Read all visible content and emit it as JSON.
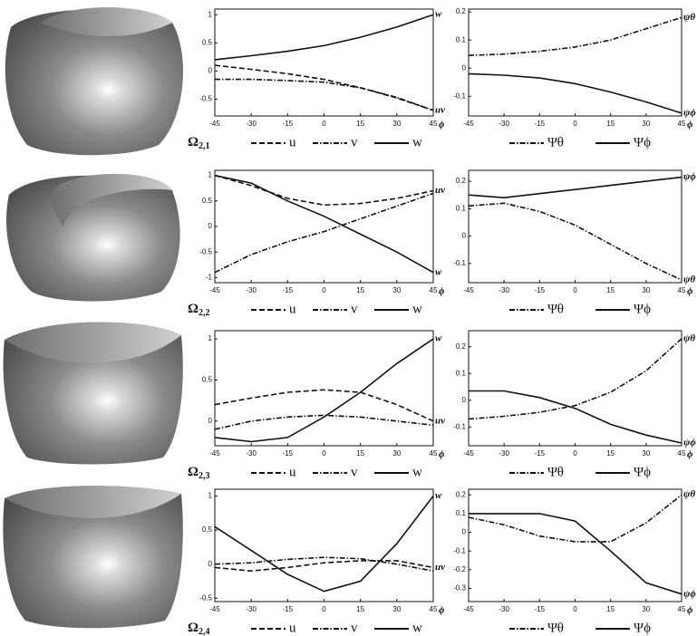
{
  "chart_data": [
    {
      "type": "line",
      "row_label": "Ω",
      "row_label_sub": "2,1",
      "xlabel": "ϕ",
      "x": [
        -45,
        -30,
        -15,
        0,
        15,
        30,
        45
      ],
      "xlim": [
        -45,
        45
      ],
      "xticks": [
        -45,
        -30,
        -15,
        0,
        15,
        30,
        45
      ],
      "ylim": [
        -0.8,
        1.1
      ],
      "yticks": [
        -0.5,
        0,
        0.5,
        1
      ],
      "series": [
        {
          "name": "u",
          "dash": "dashed",
          "color": "#111111",
          "values": [
            0.1,
            0.03,
            -0.05,
            -0.15,
            -0.3,
            -0.48,
            -0.7
          ],
          "end_label": "uv"
        },
        {
          "name": "v",
          "dash": "dashdot",
          "color": "#111111",
          "values": [
            -0.15,
            -0.15,
            -0.17,
            -0.2,
            -0.3,
            -0.47,
            -0.7
          ]
        },
        {
          "name": "w",
          "dash": "solid",
          "color": "#111111",
          "values": [
            0.2,
            0.27,
            0.35,
            0.45,
            0.6,
            0.78,
            1.0
          ],
          "end_label": "w"
        }
      ]
    },
    {
      "type": "line",
      "xlabel": "ϕ",
      "x": [
        -45,
        -30,
        -15,
        0,
        15,
        30,
        45
      ],
      "xlim": [
        -45,
        45
      ],
      "xticks": [
        -45,
        -30,
        -15,
        0,
        15,
        30,
        45
      ],
      "ylim": [
        -0.17,
        0.21
      ],
      "yticks": [
        -0.1,
        0,
        0.1,
        0.2
      ],
      "series": [
        {
          "name": "Ψθ",
          "dash": "dashdot",
          "color": "#111111",
          "values": [
            0.045,
            0.05,
            0.06,
            0.075,
            0.1,
            0.14,
            0.18
          ],
          "end_label": "ψθ"
        },
        {
          "name": "Ψϕ",
          "dash": "solid",
          "color": "#111111",
          "values": [
            -0.02,
            -0.025,
            -0.035,
            -0.055,
            -0.085,
            -0.12,
            -0.16
          ],
          "end_label": "ψϕ"
        }
      ]
    },
    {
      "type": "line",
      "row_label": "Ω",
      "row_label_sub": "2,2",
      "xlabel": "ϕ",
      "x": [
        -45,
        -30,
        -15,
        0,
        15,
        30,
        45
      ],
      "xlim": [
        -45,
        45
      ],
      "xticks": [
        -45,
        -30,
        -15,
        0,
        15,
        30,
        45
      ],
      "ylim": [
        -1.1,
        1.1
      ],
      "yticks": [
        -1,
        -0.5,
        0,
        0.5,
        1
      ],
      "series": [
        {
          "name": "u",
          "dash": "dashed",
          "color": "#111111",
          "values": [
            1.0,
            0.8,
            0.55,
            0.42,
            0.45,
            0.55,
            0.7
          ],
          "end_label": "uv"
        },
        {
          "name": "v",
          "dash": "dashdot",
          "color": "#111111",
          "values": [
            -0.9,
            -0.55,
            -0.3,
            -0.1,
            0.15,
            0.4,
            0.65
          ]
        },
        {
          "name": "w",
          "dash": "solid",
          "color": "#111111",
          "values": [
            1.0,
            0.85,
            0.5,
            0.2,
            -0.15,
            -0.5,
            -0.9
          ],
          "end_label": "w"
        }
      ]
    },
    {
      "type": "line",
      "xlabel": "ϕ",
      "x": [
        -45,
        -30,
        -15,
        0,
        15,
        30,
        45
      ],
      "xlim": [
        -45,
        45
      ],
      "xticks": [
        -45,
        -30,
        -15,
        0,
        15,
        30,
        45
      ],
      "ylim": [
        -0.17,
        0.24
      ],
      "yticks": [
        -0.1,
        0,
        0.1,
        0.2
      ],
      "series": [
        {
          "name": "Ψθ",
          "dash": "dashdot",
          "color": "#111111",
          "values": [
            0.11,
            0.12,
            0.09,
            0.04,
            -0.03,
            -0.1,
            -0.16
          ],
          "end_label": "ψθ"
        },
        {
          "name": "Ψϕ",
          "dash": "solid",
          "color": "#111111",
          "values": [
            0.15,
            0.14,
            0.155,
            0.17,
            0.185,
            0.2,
            0.215
          ],
          "end_label": "ψϕ"
        }
      ]
    },
    {
      "type": "line",
      "row_label": "Ω",
      "row_label_sub": "2,3",
      "xlabel": "ϕ",
      "x": [
        -45,
        -30,
        -15,
        0,
        15,
        30,
        45
      ],
      "xlim": [
        -45,
        45
      ],
      "xticks": [
        -45,
        -30,
        -15,
        0,
        15,
        30,
        45
      ],
      "ylim": [
        -0.3,
        1.1
      ],
      "yticks": [
        0,
        0.5,
        1
      ],
      "series": [
        {
          "name": "u",
          "dash": "dashed",
          "color": "#111111",
          "values": [
            0.2,
            0.28,
            0.35,
            0.38,
            0.35,
            0.2,
            0.0
          ],
          "end_label": "uv"
        },
        {
          "name": "v",
          "dash": "dashdot",
          "color": "#111111",
          "values": [
            -0.1,
            0.0,
            0.05,
            0.07,
            0.05,
            0.0,
            -0.05
          ]
        },
        {
          "name": "w",
          "dash": "solid",
          "color": "#111111",
          "values": [
            -0.2,
            -0.25,
            -0.2,
            0.05,
            0.35,
            0.7,
            1.0
          ],
          "end_label": "w"
        }
      ]
    },
    {
      "type": "line",
      "xlabel": "ϕ",
      "x": [
        -45,
        -30,
        -15,
        0,
        15,
        30,
        45
      ],
      "xlim": [
        -45,
        45
      ],
      "xticks": [
        -45,
        -30,
        -15,
        0,
        15,
        30,
        45
      ],
      "ylim": [
        -0.17,
        0.26
      ],
      "yticks": [
        -0.1,
        0,
        0.1,
        0.2
      ],
      "series": [
        {
          "name": "Ψθ",
          "dash": "dashdot",
          "color": "#111111",
          "values": [
            -0.07,
            -0.06,
            -0.045,
            -0.02,
            0.03,
            0.11,
            0.23
          ],
          "end_label": "ψθ"
        },
        {
          "name": "Ψϕ",
          "dash": "solid",
          "color": "#111111",
          "values": [
            0.035,
            0.035,
            0.01,
            -0.03,
            -0.09,
            -0.13,
            -0.16
          ],
          "end_label": "ψϕ"
        }
      ]
    },
    {
      "type": "line",
      "row_label": "Ω",
      "row_label_sub": "2,4",
      "xlabel": "ϕ",
      "x": [
        -45,
        -30,
        -15,
        0,
        15,
        30,
        45
      ],
      "xlim": [
        -45,
        45
      ],
      "xticks": [
        -45,
        -30,
        -15,
        0,
        15,
        30,
        45
      ],
      "ylim": [
        -0.55,
        1.1
      ],
      "yticks": [
        -0.5,
        0,
        0.5,
        1
      ],
      "series": [
        {
          "name": "u",
          "dash": "dashed",
          "color": "#111111",
          "values": [
            -0.05,
            -0.1,
            -0.05,
            0.02,
            0.05,
            0.05,
            -0.05
          ],
          "end_label": "uv"
        },
        {
          "name": "v",
          "dash": "dashdot",
          "color": "#111111",
          "values": [
            0.0,
            0.02,
            0.07,
            0.1,
            0.08,
            0.0,
            -0.1
          ]
        },
        {
          "name": "w",
          "dash": "solid",
          "color": "#111111",
          "values": [
            0.55,
            0.2,
            -0.15,
            -0.4,
            -0.25,
            0.3,
            1.0
          ],
          "end_label": "w"
        }
      ]
    },
    {
      "type": "line",
      "xlabel": "ϕ",
      "x": [
        -45,
        -30,
        -15,
        0,
        15,
        30,
        45
      ],
      "xlim": [
        -45,
        45
      ],
      "xticks": [
        -45,
        -30,
        -15,
        0,
        15,
        30,
        45
      ],
      "ylim": [
        -0.37,
        0.23
      ],
      "yticks": [
        -0.3,
        -0.2,
        -0.1,
        0,
        0.1,
        0.2
      ],
      "series": [
        {
          "name": "Ψθ",
          "dash": "dashdot",
          "color": "#111111",
          "values": [
            0.08,
            0.04,
            -0.02,
            -0.05,
            -0.05,
            0.05,
            0.2
          ],
          "end_label": "ψθ"
        },
        {
          "name": "Ψϕ",
          "dash": "solid",
          "color": "#111111",
          "values": [
            0.1,
            0.1,
            0.1,
            0.06,
            -0.1,
            -0.27,
            -0.33
          ],
          "end_label": "ψϕ"
        }
      ]
    }
  ]
}
